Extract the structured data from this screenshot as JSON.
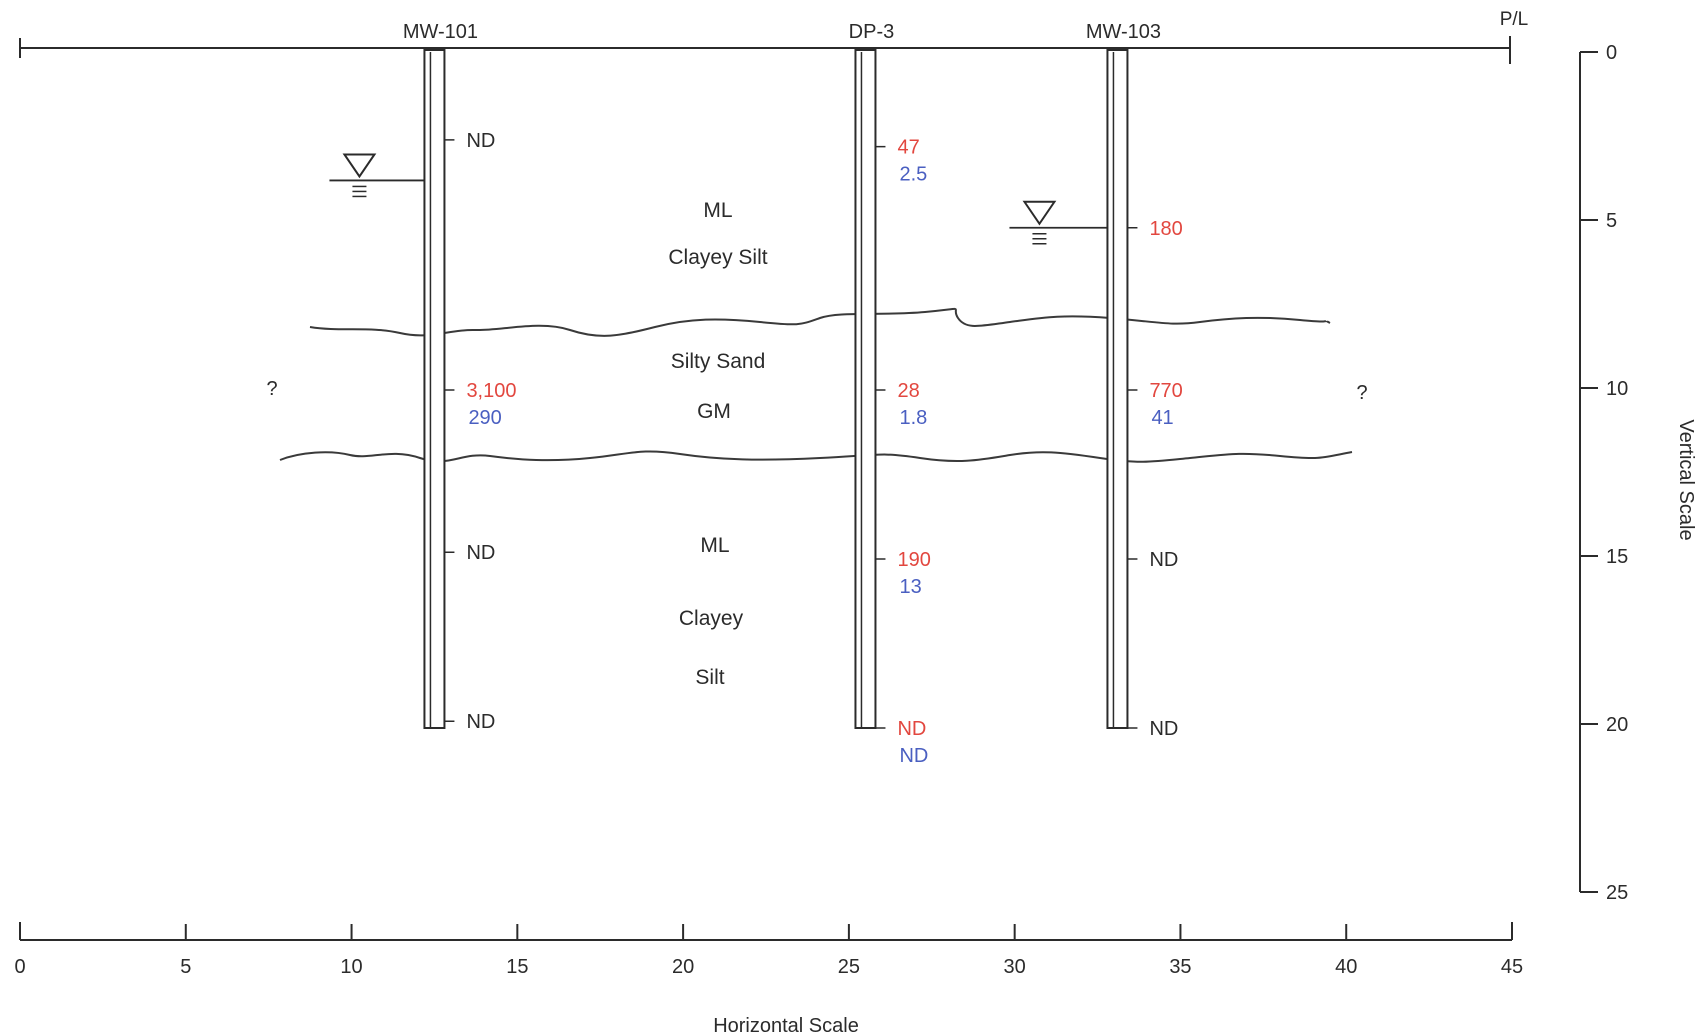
{
  "property_line": {
    "label": "P/L"
  },
  "colors": {
    "black": "#2b2b2b",
    "red": "#e2473f",
    "blue": "#4a5fc1"
  },
  "wells": [
    {
      "id": "mw-101",
      "label": "MW-101",
      "x": 12.5,
      "bottom_depth": 20,
      "water_level_depth": 3.8,
      "samples": [
        {
          "depth": 2.6,
          "red": "ND",
          "blue": ""
        },
        {
          "depth": 10,
          "red": "3,100",
          "blue": "290"
        },
        {
          "depth": 14.8,
          "red": "ND",
          "blue": ""
        },
        {
          "depth": 19.8,
          "red": "ND",
          "blue": ""
        }
      ]
    },
    {
      "id": "dp-3",
      "label": "DP-3",
      "x": 25.5,
      "bottom_depth": 20,
      "water_level_depth": null,
      "samples": [
        {
          "depth": 2.8,
          "red": "47",
          "blue": "2.5"
        },
        {
          "depth": 10,
          "red": "28",
          "blue": "1.8"
        },
        {
          "depth": 15,
          "red": "190",
          "blue": "13"
        },
        {
          "depth": 20,
          "red": "ND",
          "blue": "ND"
        }
      ]
    },
    {
      "id": "mw-103",
      "label": "MW-103",
      "x": 33.1,
      "bottom_depth": 20,
      "water_level_depth": 5.2,
      "samples": [
        {
          "depth": 5.2,
          "red": "180",
          "blue": ""
        },
        {
          "depth": 10,
          "red": "770",
          "blue": "41"
        },
        {
          "depth": 15,
          "red": "ND",
          "blue": ""
        },
        {
          "depth": 20,
          "red": "ND",
          "blue": ""
        }
      ]
    }
  ],
  "soil_labels": {
    "upper_code": "ML",
    "upper_name": "Clayey Silt",
    "middle_name": "Silty Sand",
    "middle_code": "GM",
    "lower_code": "ML",
    "lower_name_1": "Clayey",
    "lower_name_2": "Silt"
  },
  "unknown_marks": {
    "left": "?",
    "right": "?"
  },
  "horizontal_scale": {
    "title": "Horizontal Scale",
    "min": 0,
    "max": 45,
    "ticks": [
      "0",
      "5",
      "10",
      "15",
      "20",
      "25",
      "30",
      "35",
      "40",
      "45"
    ]
  },
  "vertical_scale": {
    "title": "Vertical Scale",
    "min": 0,
    "max": 25,
    "ticks": [
      "0",
      "5",
      "10",
      "15",
      "20",
      "25"
    ]
  }
}
